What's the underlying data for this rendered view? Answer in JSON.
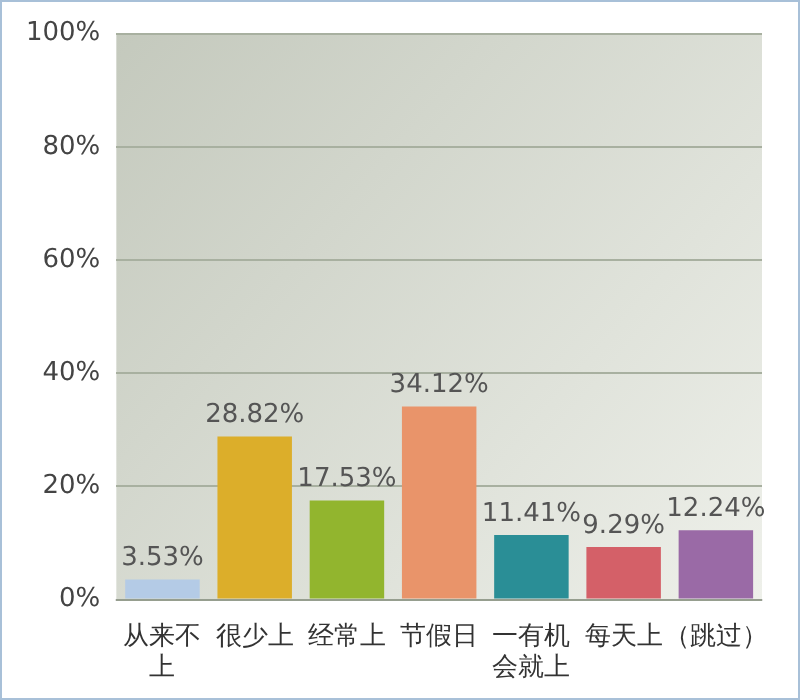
{
  "chart_data": {
    "type": "bar",
    "categories": [
      "从来不上",
      "很少上",
      "经常上",
      "节假日",
      "一有机会就上",
      "每天上",
      "（跳过）"
    ],
    "values": [
      3.53,
      28.82,
      17.53,
      34.12,
      11.41,
      9.29,
      12.24
    ],
    "value_labels": [
      "3.53%",
      "28.82%",
      "17.53%",
      "34.12%",
      "11.41%",
      "9.29%",
      "12.24%"
    ],
    "colors": [
      "#b4cbe6",
      "#dcae2a",
      "#92b52e",
      "#e9946a",
      "#2a8e96",
      "#d46068",
      "#9a6aa6"
    ],
    "ylim": [
      0,
      100
    ],
    "yticks": [
      {
        "value": 0,
        "label": "0%"
      },
      {
        "value": 20,
        "label": "20%"
      },
      {
        "value": 40,
        "label": "40%"
      },
      {
        "value": 60,
        "label": "60%"
      },
      {
        "value": 80,
        "label": "80%"
      },
      {
        "value": 100,
        "label": "100%"
      }
    ],
    "grid": "y",
    "legend": false
  }
}
